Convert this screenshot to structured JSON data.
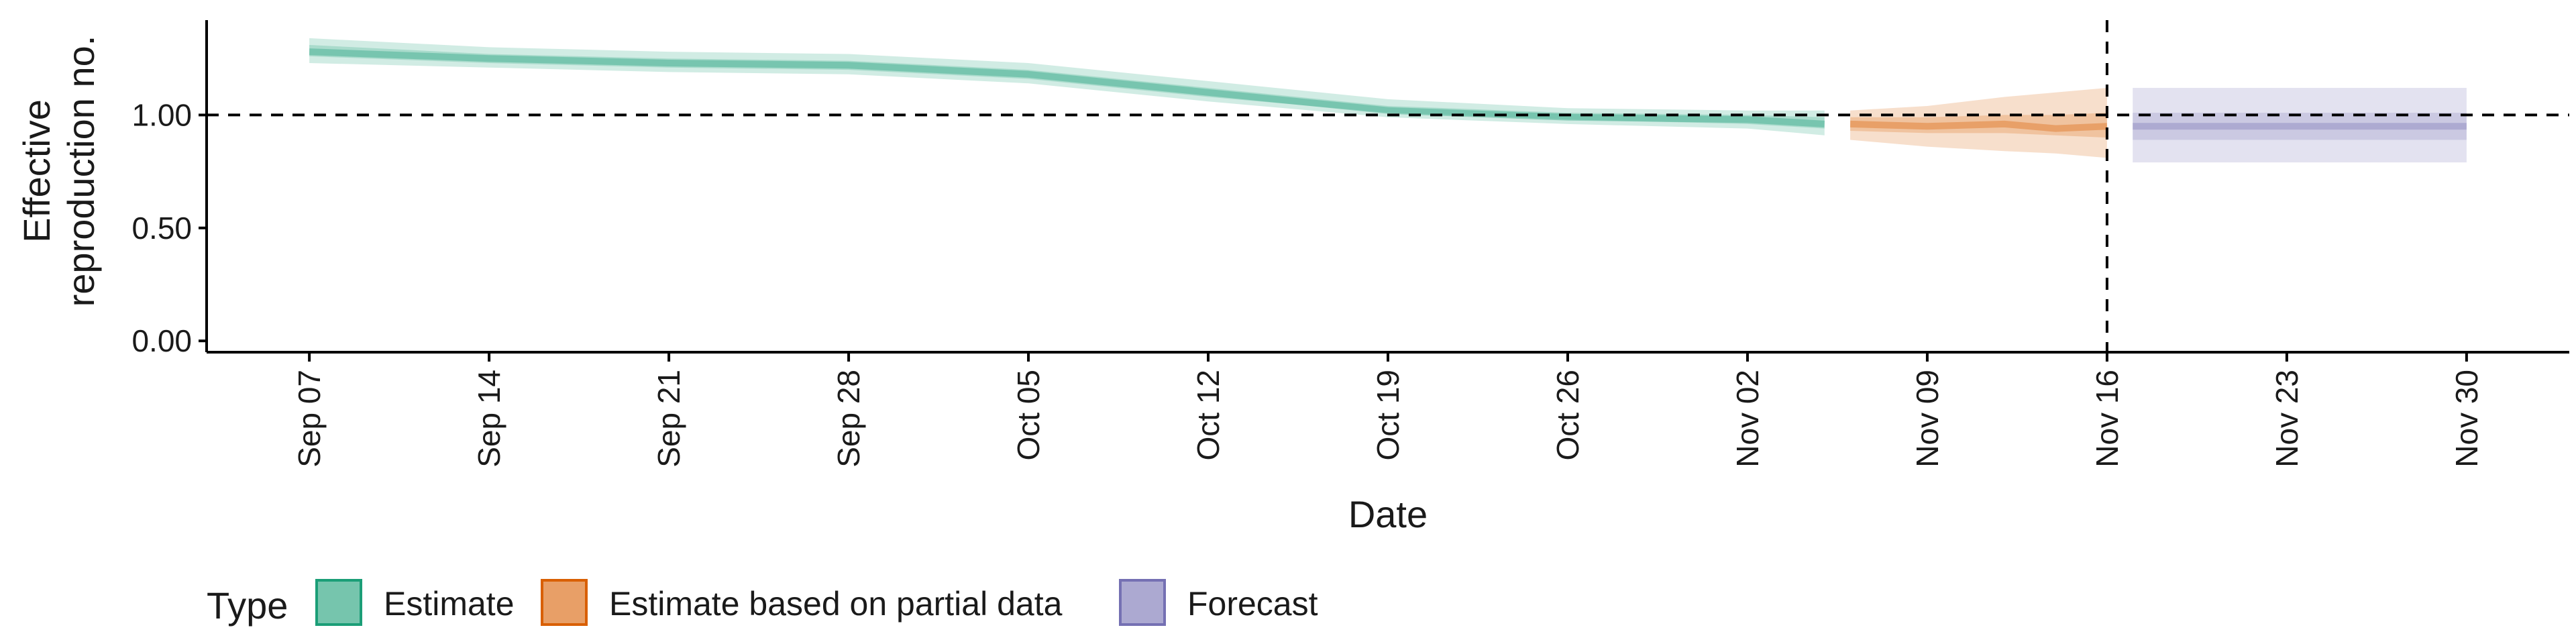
{
  "chart_data": {
    "type": "area",
    "title": "",
    "xlabel": "Date",
    "ylabel_lines": [
      "Effective",
      "reproduction no."
    ],
    "x_ticks": [
      "Sep 07",
      "Sep 14",
      "Sep 21",
      "Sep 28",
      "Oct 05",
      "Oct 12",
      "Oct 19",
      "Oct 26",
      "Nov 02",
      "Nov 09",
      "Nov 16",
      "Nov 23",
      "Nov 30"
    ],
    "x_tick_dates": [
      "2020-09-07",
      "2020-09-14",
      "2020-09-21",
      "2020-09-28",
      "2020-10-05",
      "2020-10-12",
      "2020-10-19",
      "2020-10-26",
      "2020-11-02",
      "2020-11-09",
      "2020-11-16",
      "2020-11-23",
      "2020-11-30"
    ],
    "xlim": [
      "2020-09-03",
      "2020-12-04"
    ],
    "y_ticks": [
      "0.00",
      "0.50",
      "1.00"
    ],
    "y_tick_values": [
      0,
      0.5,
      1.0
    ],
    "ylim": [
      -0.05,
      1.42
    ],
    "hline": 1.0,
    "vline": "2020-11-16",
    "grid": false,
    "legend": {
      "title": "Type",
      "position": "bottom",
      "entries": [
        {
          "label": "Estimate",
          "color": "#1b9e77"
        },
        {
          "label": "Estimate based on partial data",
          "color": "#d95f02"
        },
        {
          "label": "Forecast",
          "color": "#7570b3"
        }
      ]
    },
    "series": [
      {
        "name": "Estimate",
        "color": "#1b9e77",
        "x": [
          "2020-09-07",
          "2020-09-14",
          "2020-09-21",
          "2020-09-28",
          "2020-10-05",
          "2020-10-12",
          "2020-10-19",
          "2020-10-26",
          "2020-11-02",
          "2020-11-05"
        ],
        "median": [
          1.28,
          1.25,
          1.23,
          1.22,
          1.18,
          1.1,
          1.02,
          0.99,
          0.98,
          0.96
        ],
        "lower_outer": [
          1.23,
          1.21,
          1.19,
          1.18,
          1.14,
          1.06,
          0.99,
          0.96,
          0.94,
          0.91
        ],
        "upper_outer": [
          1.34,
          1.3,
          1.28,
          1.27,
          1.23,
          1.15,
          1.07,
          1.03,
          1.02,
          1.02
        ],
        "lower_inner": [
          1.26,
          1.23,
          1.21,
          1.2,
          1.16,
          1.08,
          1.01,
          0.98,
          0.96,
          0.94
        ],
        "upper_inner": [
          1.31,
          1.27,
          1.25,
          1.24,
          1.2,
          1.12,
          1.04,
          1.01,
          1.0,
          0.99
        ]
      },
      {
        "name": "Estimate based on partial data",
        "color": "#d95f02",
        "x": [
          "2020-11-06",
          "2020-11-09",
          "2020-11-12",
          "2020-11-14",
          "2020-11-16"
        ],
        "median": [
          0.96,
          0.95,
          0.96,
          0.94,
          0.95
        ],
        "lower_outer": [
          0.89,
          0.86,
          0.84,
          0.83,
          0.81
        ],
        "upper_outer": [
          1.02,
          1.04,
          1.08,
          1.1,
          1.12
        ],
        "lower_inner": [
          0.93,
          0.92,
          0.92,
          0.91,
          0.9
        ],
        "upper_inner": [
          0.99,
          0.99,
          1.0,
          1.0,
          1.01
        ]
      },
      {
        "name": "Forecast",
        "color": "#7570b3",
        "x": [
          "2020-11-17",
          "2020-11-30"
        ],
        "median": [
          0.95,
          0.95
        ],
        "lower_outer": [
          0.79,
          0.79
        ],
        "upper_outer": [
          1.12,
          1.12
        ],
        "lower_inner": [
          0.89,
          0.89
        ],
        "upper_inner": [
          1.01,
          1.01
        ]
      }
    ]
  }
}
